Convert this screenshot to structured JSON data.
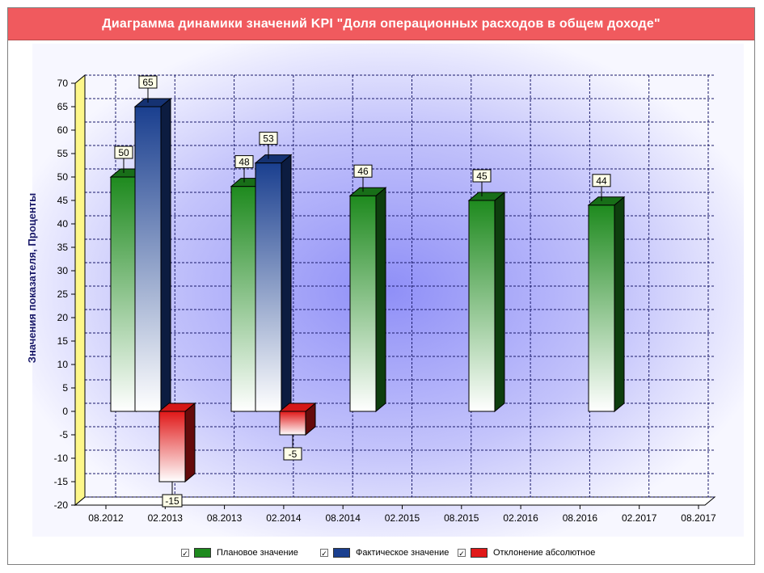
{
  "chart_data": {
    "type": "bar",
    "title": "Диаграмма динамики значений KPI \"Доля операционных расходов в общем доходе\"",
    "ylabel": "Значения показателя, Проценты",
    "xlabel": "",
    "ylim": [
      -20,
      70
    ],
    "yticks": [
      70,
      65,
      60,
      55,
      50,
      45,
      40,
      35,
      30,
      25,
      20,
      15,
      10,
      5,
      0,
      -5,
      -10,
      -15,
      -20
    ],
    "x_tick_labels": [
      "08.2012",
      "02.2013",
      "08.2013",
      "02.2014",
      "08.2014",
      "02.2015",
      "08.2015",
      "02.2016",
      "08.2016",
      "02.2017",
      "08.2017"
    ],
    "categories": [
      "2012",
      "2013",
      "2014",
      "2015",
      "2016"
    ],
    "series": [
      {
        "name": "Плановое значение",
        "color": "#1e8a1e",
        "values": [
          50,
          48,
          46,
          45,
          44
        ]
      },
      {
        "name": "Фактическое значение",
        "color": "#1a3f8f",
        "values": [
          65,
          53,
          null,
          null,
          null
        ]
      },
      {
        "name": "Отклонение абсолютное",
        "color": "#e01818",
        "values": [
          -15,
          -5,
          null,
          null,
          null
        ]
      }
    ],
    "data_labels": [
      {
        "text": "50"
      },
      {
        "text": "65"
      },
      {
        "text": "-15"
      },
      {
        "text": "48"
      },
      {
        "text": "53"
      },
      {
        "text": "-5"
      },
      {
        "text": "46"
      },
      {
        "text": "45"
      },
      {
        "text": "44"
      }
    ],
    "grid": true,
    "legend_position": "bottom",
    "legend_checked_mark": "✓"
  }
}
